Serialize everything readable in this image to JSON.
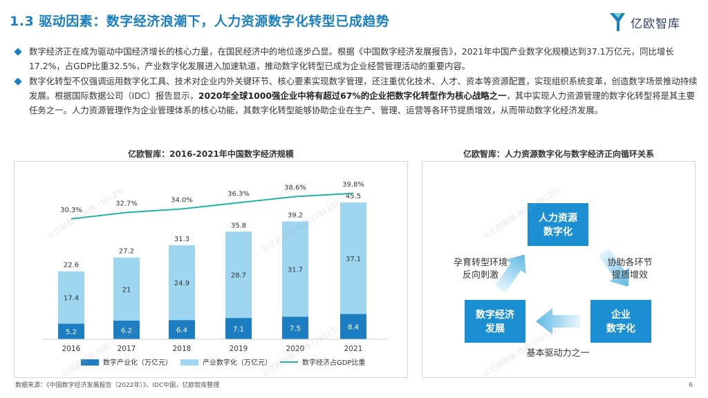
{
  "header": {
    "title": "1.3 驱动因素：数字经济浪潮下，人力资源数字化转型已成趋势",
    "logo_text": "亿欧智库"
  },
  "bullets": [
    {
      "pre": "数字经济正在成为驱动中国经济增长的核心力量，在国民经济中的地位逐步凸显。根据《中国数字经济发展报告》，2021年中国产业数字化规模达到37.1万亿元，同比增长17.2%，占GDP比重32.5%，产业数字化发展进入加速轨道，推动数字化转型已成为企业经营管理活动的重要内容。",
      "bold": "",
      "post": ""
    },
    {
      "pre": "数字化转型不仅强调运用数字化工具、技术对企业内外关键环节、核心要素实现数字管理，还注重优化技术、人才、资本等资源配置，实现组织系统变革，创造数字场景推动持续发展。根据国际数据公司（IDC）报告显示，",
      "bold": "2020年全球1000强企业中将有超过67%的企业把数字化转型作为核心战略之一",
      "post": "，其中实现人力资源管理的数字化转型将是其主要任务之一。人力资源管理作为企业管理体系的核心功能，其数字化转型能够协助企业在生产、管理、运营等各环节提质增效，从而带动数字化经济发展。"
    }
  ],
  "left_chart_title": "亿欧智库：2016-2021年中国数字经济规模",
  "right_chart_title": "亿欧智库：人力资源数字化与数字经济正向循环关系",
  "chart_data": {
    "type": "bar",
    "title": "亿欧智库：2016-2021年中国数字经济规模",
    "categories": [
      "2016",
      "2017",
      "2018",
      "2019",
      "2020",
      "2021"
    ],
    "series": [
      {
        "name": "数字产业化（万亿元）",
        "values": [
          5.2,
          6.2,
          6.4,
          7.1,
          7.5,
          8.4
        ],
        "color": "#1c7ec0"
      },
      {
        "name": "产业数字化（万亿元）",
        "values": [
          17.4,
          21,
          24.9,
          28.7,
          31.7,
          37.1
        ],
        "color": "#9dd6ee"
      },
      {
        "name": "数字经济占GDP比重",
        "values": [
          30.3,
          32.7,
          34.0,
          36.3,
          38.6,
          39.8
        ],
        "color": "#21b2a6",
        "kind": "line"
      }
    ],
    "totals": [
      22.6,
      27.2,
      31.3,
      35.8,
      39.2,
      45.5
    ],
    "line_labels": [
      "30.3%",
      "32.7%",
      "34.0%",
      "36.3%",
      "38.6%",
      "39.8%"
    ],
    "stacked": true,
    "legend_position": "bottom",
    "grid": false
  },
  "diagram": {
    "nodes": {
      "hr": "人力资源\n数字化",
      "enterprise": "企业\n数字化",
      "economy": "数字经济\n发展"
    },
    "labels": {
      "right": "协助各环节\n提质增效",
      "bottom": "基本驱动力之一",
      "left": "孕育转型环境\n反向刺激"
    },
    "node_color": "#1c8fd2"
  },
  "watermark": "©亿欧智库-陈皓 (79125)",
  "footer": {
    "source": "数据来源：《中国数字经济发展报告（2022年）》、IDC中国，亿欧智库整理",
    "page": "6"
  }
}
